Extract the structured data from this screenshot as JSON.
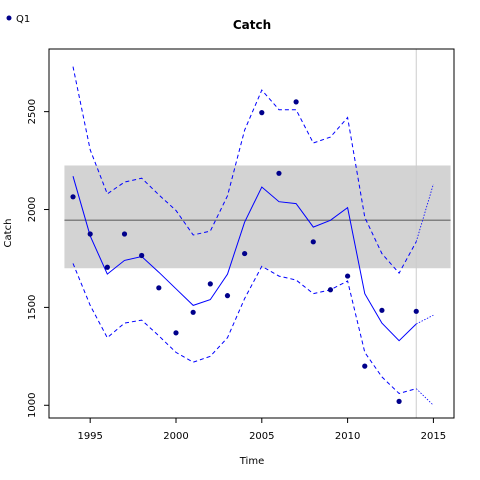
{
  "chart_data": {
    "type": "line",
    "title": "Catch",
    "xlabel": "Time",
    "ylabel": "Catch",
    "xlim": [
      1992.6,
      2016.2
    ],
    "ylim": [
      935,
      2820
    ],
    "xticks": [
      1995,
      2000,
      2005,
      2010,
      2015
    ],
    "yticks": [
      1000,
      1500,
      2000,
      2500
    ],
    "grid": false,
    "legend": {
      "position": "top-left",
      "entries": [
        {
          "name": "Q1",
          "color": "#00008b",
          "marker": "point"
        }
      ]
    },
    "reference_band": {
      "x": [
        1993.5,
        2016
      ],
      "y": [
        1700,
        2225
      ],
      "color": "#d3d3d3"
    },
    "reference_line": {
      "y": 1945,
      "x": [
        1993.5,
        2016
      ],
      "color": "#808080"
    },
    "vertical_line": {
      "x": 2014,
      "color": "#cccccc"
    },
    "observed": {
      "name": "Q1",
      "color": "#00008b",
      "points": [
        [
          1994,
          2065
        ],
        [
          1995,
          1875
        ],
        [
          1996,
          1705
        ],
        [
          1997,
          1875
        ],
        [
          1998,
          1765
        ],
        [
          1999,
          1600
        ],
        [
          2000,
          1370
        ],
        [
          2001,
          1475
        ],
        [
          2002,
          1620
        ],
        [
          2003,
          1560
        ],
        [
          2004,
          1775
        ],
        [
          2005,
          2495
        ],
        [
          2006,
          2185
        ],
        [
          2007,
          2550
        ],
        [
          2008,
          1835
        ],
        [
          2009,
          1590
        ],
        [
          2010,
          1660
        ],
        [
          2011,
          1200
        ],
        [
          2012,
          1485
        ],
        [
          2013,
          1020
        ],
        [
          2014,
          1480
        ]
      ]
    },
    "fit": {
      "color": "#0000ff",
      "x": [
        1994,
        1995,
        1996,
        1997,
        1998,
        1999,
        2000,
        2001,
        2002,
        2003,
        2004,
        2005,
        2006,
        2007,
        2008,
        2009,
        2010,
        2011,
        2012,
        2013,
        2014
      ],
      "median": [
        2170,
        1865,
        1670,
        1740,
        1760,
        1680,
        1595,
        1510,
        1540,
        1670,
        1935,
        2115,
        2040,
        2030,
        1910,
        1945,
        2010,
        1570,
        1420,
        1330,
        1415
      ],
      "upper": [
        2730,
        2305,
        2080,
        2140,
        2160,
        2075,
        1995,
        1870,
        1890,
        2070,
        2405,
        2610,
        2510,
        2510,
        2340,
        2370,
        2470,
        1960,
        1775,
        1675,
        1835
      ],
      "lower": [
        1725,
        1510,
        1345,
        1420,
        1435,
        1355,
        1270,
        1220,
        1250,
        1345,
        1545,
        1710,
        1660,
        1640,
        1570,
        1590,
        1635,
        1270,
        1145,
        1060,
        1085
      ]
    },
    "projection": {
      "color": "#0000ff",
      "x": [
        2014,
        2015
      ],
      "median": [
        1415,
        1460
      ],
      "upper": [
        1835,
        2130
      ],
      "lower": [
        1085,
        1000
      ]
    }
  }
}
